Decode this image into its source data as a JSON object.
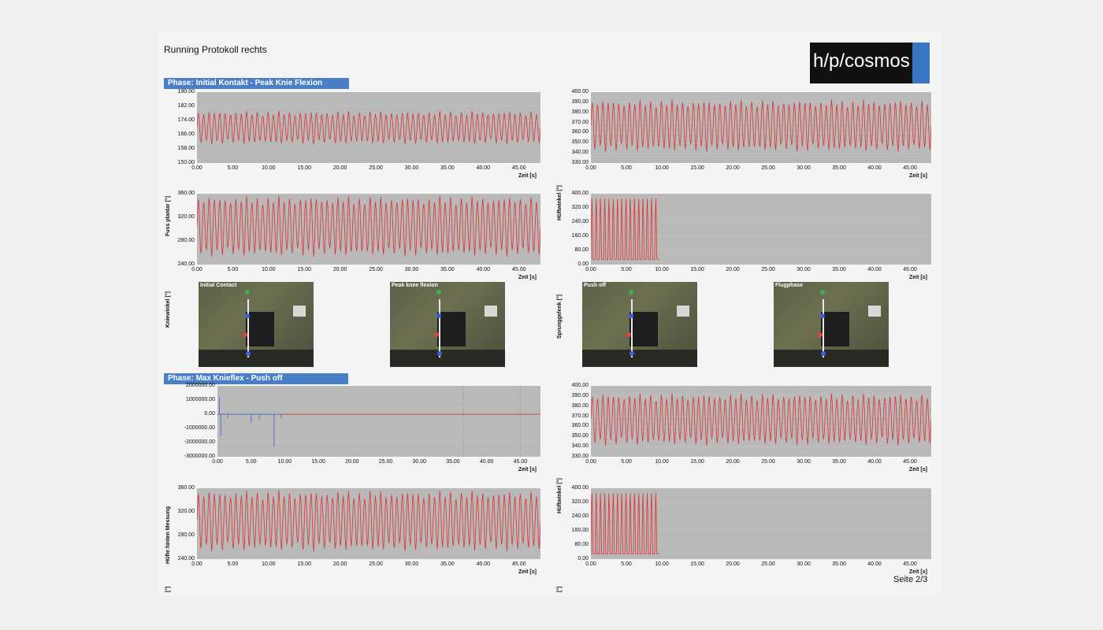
{
  "header": {
    "title": "Running Protokoll rechts",
    "logo_text": "h/p/cosmos"
  },
  "phases": {
    "phase1": "Phase: Initial Kontakt - Peak Knie Flexion",
    "phase2": "Phase: Max Knieflex - Push off"
  },
  "images": {
    "img1": "Initial Contact",
    "img2": "Peak knee flexion",
    "img3": "Push off",
    "img4": "Flugphase"
  },
  "side_labels": {
    "left1": "Fuss plantar [°]",
    "left2": "Kniewinkel [°]",
    "left3": "Hüfte hinten Messung",
    "left4": "[°]",
    "right1": "Hüftwinkel [°]",
    "right2": "Sprunggelenk [°]",
    "right3": "Hüftwinkel [°]",
    "right4": "[°]"
  },
  "footer": {
    "page": "Seite 2/3"
  },
  "colors": {
    "series": "#e03030",
    "plot_bg": "#b9b9b9",
    "phase_bar": "#4a7fc5",
    "logo_blue": "#3a75c4"
  },
  "chart_data": [
    {
      "type": "line",
      "ylim": [
        150,
        190
      ],
      "yticks": [
        "190.00",
        "182.00",
        "174.00",
        "166.00",
        "158.00",
        "150.00"
      ],
      "xlabel": "Zeit [s]",
      "xticks": [
        "0.00",
        "5.00",
        "10.00",
        "15.00",
        "20.00",
        "25.00",
        "30.00",
        "35.00",
        "40.00",
        "45.00"
      ],
      "signal": {
        "center": 170,
        "amp": 8,
        "cycles": 64
      }
    },
    {
      "type": "line",
      "ylim": [
        330,
        400
      ],
      "yticks": [
        "400.00",
        "390.00",
        "380.00",
        "370.00",
        "360.00",
        "350.00",
        "340.00",
        "330.00"
      ],
      "xlabel": "Zeit [s]",
      "xticks": [
        "0.00",
        "5.00",
        "10.00",
        "15.00",
        "20.00",
        "25.00",
        "30.00",
        "35.00",
        "40.00",
        "45.00"
      ],
      "signal": {
        "center": 367,
        "amp": 22,
        "cycles": 64
      }
    },
    {
      "type": "line",
      "ylim": [
        240,
        360
      ],
      "yticks": [
        "360.00",
        "320.00",
        "280.00",
        "240.00"
      ],
      "xlabel": "Zeit [s]",
      "xticks": [
        "0.00",
        "5.00",
        "10.00",
        "15.00",
        "20.00",
        "25.00",
        "30.00",
        "35.00",
        "40.00",
        "45.00"
      ],
      "signal": {
        "center": 305,
        "amp": 44,
        "cycles": 64
      }
    },
    {
      "type": "line",
      "ylim": [
        0,
        400
      ],
      "yticks": [
        "400.00",
        "320.00",
        "240.00",
        "160.00",
        "80.00",
        "0.00"
      ],
      "xlabel": "Zeit [s]",
      "xticks": [
        "0.00",
        "5.00",
        "10.00",
        "15.00",
        "20.00",
        "25.00",
        "30.00",
        "35.00",
        "40.00",
        "45.00"
      ],
      "signal": {
        "center": 0,
        "amp": 360,
        "cycles": 16,
        "end_x": 9.6
      }
    },
    {
      "type": "line",
      "ylim": [
        -3000000,
        2000000
      ],
      "yticks": [
        "2000000.00",
        "1000000.00",
        "0.00",
        "-1000000.00",
        "-2000000.00",
        "-3000000.00"
      ],
      "xlabel": "Zeit [s]",
      "xticks": [
        "0.00",
        "5.00",
        "10.00",
        "15.00",
        "20.00",
        "25.00",
        "30.00",
        "35.00",
        "40.00",
        "45.00"
      ],
      "signal": {
        "center": 0,
        "amp": 0,
        "cycles": 0
      }
    },
    {
      "type": "line",
      "ylim": [
        330,
        400
      ],
      "yticks": [
        "400.00",
        "390.00",
        "380.00",
        "370.00",
        "360.00",
        "350.00",
        "340.00",
        "330.00"
      ],
      "xlabel": "Zeit [s]",
      "xticks": [
        "0.00",
        "5.00",
        "10.00",
        "15.00",
        "20.00",
        "25.00",
        "30.00",
        "35.00",
        "40.00",
        "45.00"
      ],
      "signal": {
        "center": 367,
        "amp": 22,
        "cycles": 64
      }
    },
    {
      "type": "line",
      "ylim": [
        240,
        360
      ],
      "yticks": [
        "360.00",
        "320.00",
        "280.00",
        "240.00"
      ],
      "xlabel": "Zeit [s]",
      "xticks": [
        "0.00",
        "5.00",
        "10.00",
        "15.00",
        "20.00",
        "25.00",
        "30.00",
        "35.00",
        "40.00",
        "45.00"
      ],
      "signal": {
        "center": 305,
        "amp": 44,
        "cycles": 64
      }
    },
    {
      "type": "line",
      "ylim": [
        0,
        400
      ],
      "yticks": [
        "400.00",
        "320.00",
        "240.00",
        "160.00",
        "80.00",
        "0.00"
      ],
      "xlabel": "Zeit [s]",
      "xticks": [
        "0.00",
        "5.00",
        "10.00",
        "15.00",
        "20.00",
        "25.00",
        "30.00",
        "35.00",
        "40.00",
        "45.00"
      ],
      "signal": {
        "center": 0,
        "amp": 360,
        "cycles": 16,
        "end_x": 9.6
      }
    }
  ]
}
